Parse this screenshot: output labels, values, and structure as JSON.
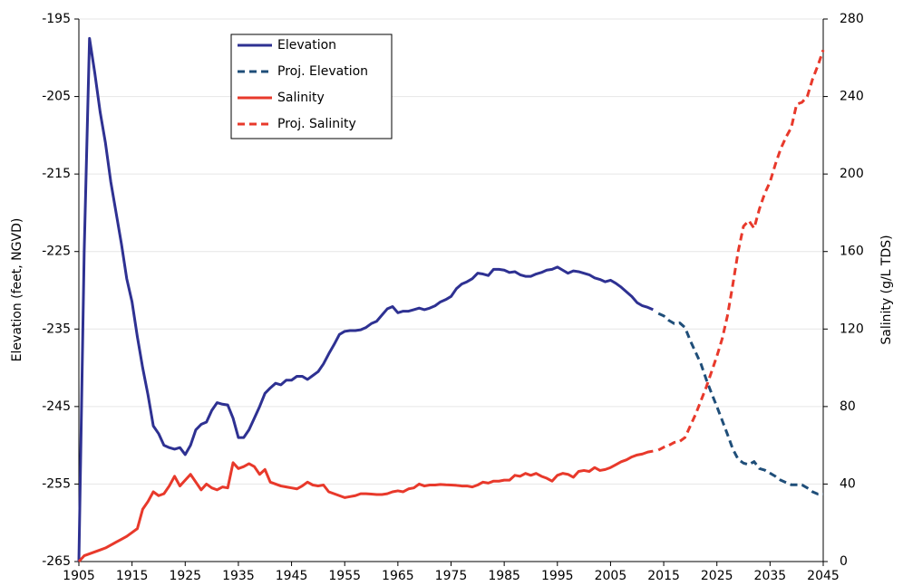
{
  "chart_data": {
    "type": "line",
    "y_label": "Elevation (feet, NGVD)",
    "y2_label": "Salinity (g/L TDS)",
    "xlim": [
      1905,
      2045
    ],
    "xticks": [
      1905,
      1915,
      1925,
      1935,
      1945,
      1955,
      1965,
      1975,
      1985,
      1995,
      2005,
      2015,
      2025,
      2035,
      2045
    ],
    "ylim": [
      -265,
      -195
    ],
    "yticks": [
      -265,
      -255,
      -245,
      -235,
      -225,
      -215,
      -205,
      -195
    ],
    "y2lim": [
      0,
      280
    ],
    "y2ticks": [
      0,
      40,
      80,
      120,
      160,
      200,
      240,
      280
    ],
    "grid": true,
    "legend": "upper left",
    "series": [
      {
        "name": "Elevation",
        "color": "#2e3192",
        "dashed": false,
        "axis": "y",
        "x": [
          1905,
          1906,
          1907,
          1908,
          1909,
          1910,
          1911,
          1912,
          1913,
          1914,
          1915,
          1916,
          1917,
          1918,
          1919,
          1920,
          1921,
          1922,
          1923,
          1924,
          1925,
          1926,
          1927,
          1928,
          1929,
          1930,
          1931,
          1932,
          1933,
          1934,
          1935,
          1936,
          1937,
          1938,
          1939,
          1940,
          1941,
          1942,
          1943,
          1944,
          1945,
          1946,
          1947,
          1948,
          1949,
          1950,
          1951,
          1952,
          1953,
          1954,
          1955,
          1956,
          1957,
          1958,
          1959,
          1960,
          1961,
          1962,
          1963,
          1964,
          1965,
          1966,
          1967,
          1968,
          1969,
          1970,
          1971,
          1972,
          1973,
          1974,
          1975,
          1976,
          1977,
          1978,
          1979,
          1980,
          1981,
          1982,
          1983,
          1984,
          1985,
          1986,
          1987,
          1988,
          1989,
          1990,
          1991,
          1992,
          1993,
          1994,
          1995,
          1996,
          1997,
          1998,
          1999,
          2000,
          2001,
          2002,
          2003,
          2004,
          2005,
          2006,
          2007,
          2008,
          2009,
          2010,
          2011,
          2012,
          2013
        ],
        "values": [
          -265,
          -225,
          -197.5,
          -202,
          -207,
          -211,
          -216,
          -220,
          -224,
          -228.5,
          -231.5,
          -236,
          -240,
          -243.5,
          -247.5,
          -248.5,
          -250,
          -250.3,
          -250.5,
          -250.3,
          -251.2,
          -250,
          -248,
          -247.3,
          -247,
          -245.5,
          -244.5,
          -244.7,
          -244.8,
          -246.5,
          -249,
          -249,
          -248,
          -246.5,
          -245,
          -243.3,
          -242.6,
          -242,
          -242.2,
          -241.6,
          -241.6,
          -241.1,
          -241.1,
          -241.5,
          -241,
          -240.5,
          -239.5,
          -238.2,
          -237,
          -235.7,
          -235.3,
          -235.2,
          -235.2,
          -235.1,
          -234.8,
          -234.3,
          -234,
          -233.2,
          -232.4,
          -232.1,
          -232.9,
          -232.7,
          -232.7,
          -232.5,
          -232.3,
          -232.5,
          -232.3,
          -232,
          -231.5,
          -231.2,
          -230.8,
          -229.8,
          -229.2,
          -228.9,
          -228.5,
          -227.8,
          -227.9,
          -228.1,
          -227.3,
          -227.3,
          -227.4,
          -227.7,
          -227.6,
          -228,
          -228.2,
          -228.2,
          -227.9,
          -227.7,
          -227.4,
          -227.3,
          -227,
          -227.4,
          -227.8,
          -227.5,
          -227.6,
          -227.8,
          -228,
          -228.4,
          -228.6,
          -228.9,
          -228.7,
          -229.1,
          -229.6,
          -230.2,
          -230.8,
          -231.6,
          -232,
          -232.2,
          -232.5
        ]
      },
      {
        "name": "Proj. Elevation",
        "color": "#1f4e79",
        "dashed": true,
        "axis": "y",
        "x": [
          2014,
          2015,
          2016,
          2017,
          2018,
          2019,
          2020,
          2021,
          2022,
          2023,
          2024,
          2025,
          2026,
          2027,
          2028,
          2029,
          2030,
          2031,
          2032,
          2033,
          2034,
          2035,
          2036,
          2037,
          2038,
          2039,
          2040,
          2041,
          2042,
          2043,
          2044,
          2045
        ],
        "values": [
          -233,
          -233.3,
          -233.9,
          -234.3,
          -234.2,
          -234.8,
          -236.5,
          -238,
          -239.5,
          -241.5,
          -243.3,
          -245,
          -246.8,
          -248.6,
          -250.5,
          -251.8,
          -252.3,
          -252.5,
          -252.1,
          -253,
          -253.2,
          -253.6,
          -254,
          -254.5,
          -254.8,
          -255.1,
          -255.1,
          -255.1,
          -255.5,
          -256,
          -256.3,
          -256.3
        ]
      },
      {
        "name": "Salinity",
        "color": "#e8392b",
        "dashed": false,
        "axis": "y2",
        "x": [
          1905,
          1906,
          1907,
          1908,
          1909,
          1910,
          1911,
          1912,
          1913,
          1914,
          1915,
          1916,
          1917,
          1918,
          1919,
          1920,
          1921,
          1922,
          1923,
          1924,
          1925,
          1926,
          1927,
          1928,
          1929,
          1930,
          1931,
          1932,
          1933,
          1934,
          1935,
          1936,
          1937,
          1938,
          1939,
          1940,
          1941,
          1942,
          1943,
          1944,
          1945,
          1946,
          1947,
          1948,
          1949,
          1950,
          1951,
          1952,
          1953,
          1954,
          1955,
          1956,
          1957,
          1958,
          1959,
          1960,
          1961,
          1962,
          1963,
          1964,
          1965,
          1966,
          1967,
          1968,
          1969,
          1970,
          1971,
          1972,
          1973,
          1974,
          1975,
          1976,
          1977,
          1978,
          1979,
          1980,
          1981,
          1982,
          1983,
          1984,
          1985,
          1986,
          1987,
          1988,
          1989,
          1990,
          1991,
          1992,
          1993,
          1994,
          1995,
          1996,
          1997,
          1998,
          1999,
          2000,
          2001,
          2002,
          2003,
          2004,
          2005,
          2006,
          2007,
          2008,
          2009,
          2010,
          2011,
          2012,
          2013
        ],
        "values": [
          0,
          3,
          4,
          5,
          6,
          7,
          8.5,
          10,
          11.5,
          13,
          15,
          17,
          27,
          31,
          36,
          34,
          35,
          39,
          44,
          39,
          42,
          45,
          41,
          37,
          40,
          38,
          37,
          38.5,
          38,
          51,
          48,
          49,
          50.5,
          49,
          45,
          47.5,
          41,
          40,
          39,
          38.5,
          38,
          37.5,
          39,
          41,
          39.5,
          39,
          39.5,
          36,
          35,
          34,
          33,
          33.5,
          34,
          35,
          35,
          34.8,
          34.6,
          34.6,
          35,
          36,
          36.5,
          36,
          37.5,
          38,
          40,
          39,
          39.5,
          39.5,
          39.8,
          39.6,
          39.5,
          39.3,
          39,
          39,
          38.5,
          39.5,
          41,
          40.5,
          41.5,
          41.5,
          42,
          42,
          44.5,
          44,
          45.5,
          44.5,
          45.5,
          44,
          43,
          41.5,
          44.5,
          45.5,
          45,
          43.5,
          46.5,
          47,
          46.5,
          48.5,
          47,
          47.5,
          48.5,
          50,
          51.5,
          52.5,
          54,
          55,
          55.5,
          56.5,
          57
        ]
      },
      {
        "name": "Proj. Salinity",
        "color": "#e8392b",
        "dashed": true,
        "axis": "y2",
        "x": [
          2014,
          2015,
          2016,
          2017,
          2018,
          2019,
          2020,
          2021,
          2022,
          2023,
          2024,
          2025,
          2026,
          2027,
          2028,
          2029,
          2030,
          2031,
          2032,
          2033,
          2034,
          2035,
          2036,
          2037,
          2038,
          2039,
          2040,
          2041,
          2042,
          2043,
          2044,
          2045
        ],
        "values": [
          57.5,
          59,
          60,
          61.5,
          62,
          64,
          70,
          76,
          83,
          90,
          98,
          106,
          115,
          127,
          143,
          160,
          173,
          176,
          172,
          182,
          190,
          196,
          205,
          213,
          219,
          224,
          236,
          237,
          240,
          249,
          256,
          264
        ]
      }
    ]
  }
}
